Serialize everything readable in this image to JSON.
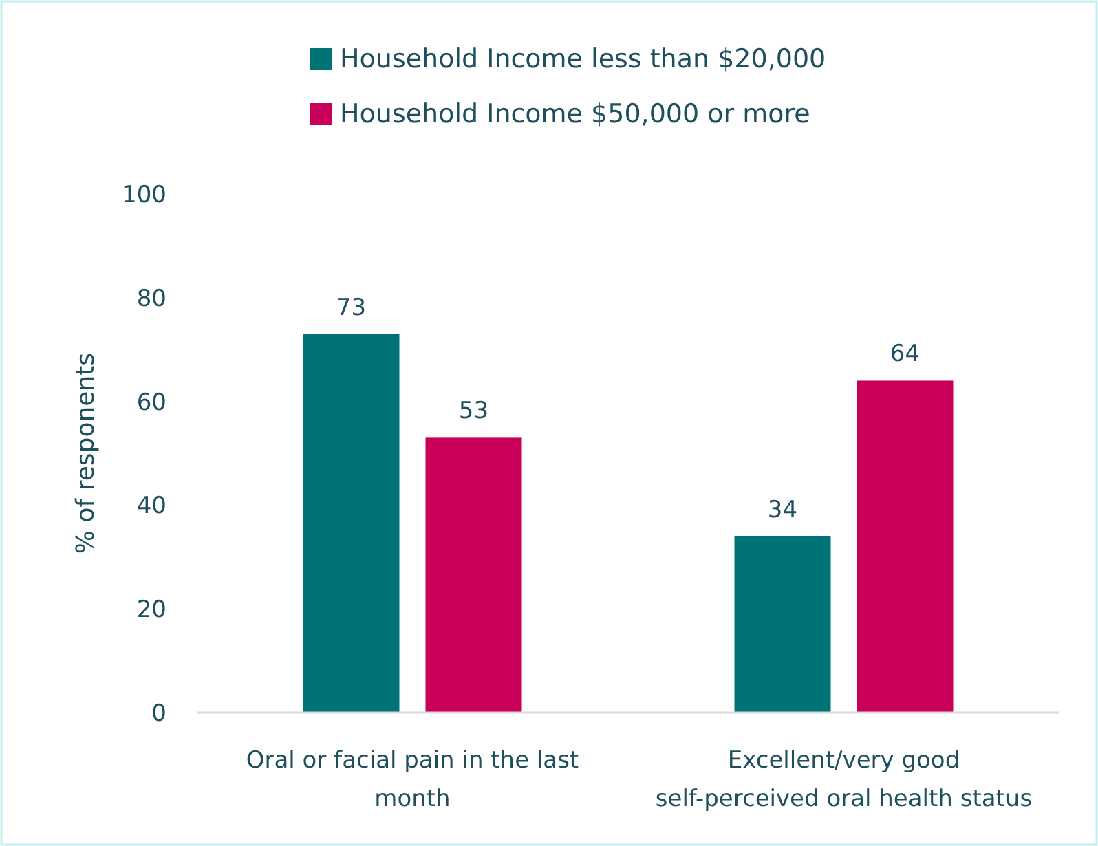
{
  "chart_data": {
    "type": "bar",
    "categories": [
      "Oral or facial pain in the last month",
      "Excellent/very good self-perceived oral health status"
    ],
    "series": [
      {
        "name": "Household Income less than $20,000",
        "color": "#007377",
        "values": [
          73,
          34
        ]
      },
      {
        "name": "Household Income $50,000 or more",
        "color": "#c8005a",
        "values": [
          53,
          64
        ]
      }
    ],
    "ylabel": "% of responents",
    "ylim": [
      0,
      100
    ],
    "yticks": [
      0,
      20,
      40,
      60,
      80,
      100
    ],
    "data_labels": true,
    "legend": "top",
    "grid": false
  }
}
